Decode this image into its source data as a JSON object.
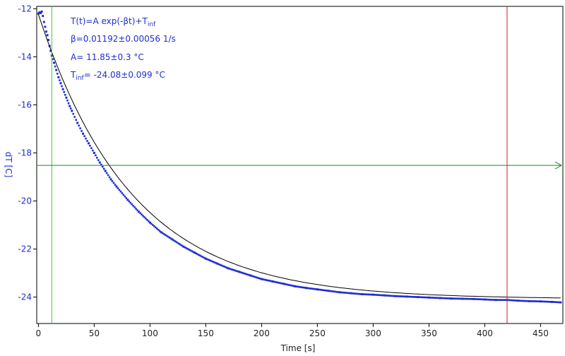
{
  "chart_data": {
    "type": "scatter",
    "xlabel": "Time [s]",
    "ylabel": "dT [C]",
    "xlim": [
      -1.5,
      470
    ],
    "ylim": [
      -25.1,
      -11.9
    ],
    "xticks": [
      0,
      50,
      100,
      150,
      200,
      250,
      300,
      350,
      400,
      450
    ],
    "yticks": [
      -24,
      -22,
      -20,
      -18,
      -16,
      -14,
      -12
    ],
    "grid": false,
    "fit": {
      "label_line1": "T(t)=A exp(-βt)+T",
      "label_line1_sub": "inf",
      "label_beta": "β=0.01192±0.00056 1/s",
      "label_A": "A= 11.85±0.3 °C",
      "label_tinf_prefix": "T",
      "label_tinf_sub": "inf",
      "label_tinf_value": "= -24.08±0.099 °C",
      "A": 11.85,
      "beta": 0.01192,
      "T_inf": -24.08
    },
    "markers": {
      "green_vertical_x": 12,
      "red_vertical_x": 420,
      "horizontal_y": -18.52
    },
    "series": [
      {
        "x": [
          0,
          1,
          2,
          3,
          4,
          5,
          6,
          7,
          8,
          9,
          10,
          11,
          12,
          14,
          16,
          18,
          20,
          22,
          25,
          28,
          30,
          35,
          40,
          45,
          50,
          55,
          60,
          65,
          70,
          80,
          90,
          100,
          110,
          120,
          130,
          140,
          150,
          160,
          170,
          180,
          190,
          200,
          210,
          220,
          230,
          240,
          250,
          260,
          270,
          280,
          290,
          300,
          310,
          320,
          330,
          340,
          350,
          360,
          370,
          380,
          390,
          400,
          410,
          420,
          430,
          440,
          450,
          460,
          468
        ],
        "y": [
          -12.2,
          -12.15,
          -12.18,
          -12.12,
          -12.3,
          -12.55,
          -12.75,
          -12.95,
          -13.1,
          -13.3,
          -13.55,
          -13.75,
          -13.95,
          -14.25,
          -14.55,
          -14.85,
          -15.1,
          -15.35,
          -15.7,
          -16.05,
          -16.25,
          -16.75,
          -17.2,
          -17.6,
          -18.0,
          -18.4,
          -18.75,
          -19.1,
          -19.4,
          -19.95,
          -20.45,
          -20.9,
          -21.3,
          -21.6,
          -21.9,
          -22.15,
          -22.4,
          -22.6,
          -22.8,
          -22.95,
          -23.1,
          -23.25,
          -23.35,
          -23.45,
          -23.55,
          -23.62,
          -23.68,
          -23.74,
          -23.8,
          -23.84,
          -23.88,
          -23.9,
          -23.93,
          -23.96,
          -23.98,
          -24.0,
          -24.02,
          -24.04,
          -24.06,
          -24.07,
          -24.08,
          -24.1,
          -24.12,
          -24.12,
          -24.15,
          -24.17,
          -24.18,
          -24.2,
          -24.22
        ]
      }
    ]
  }
}
